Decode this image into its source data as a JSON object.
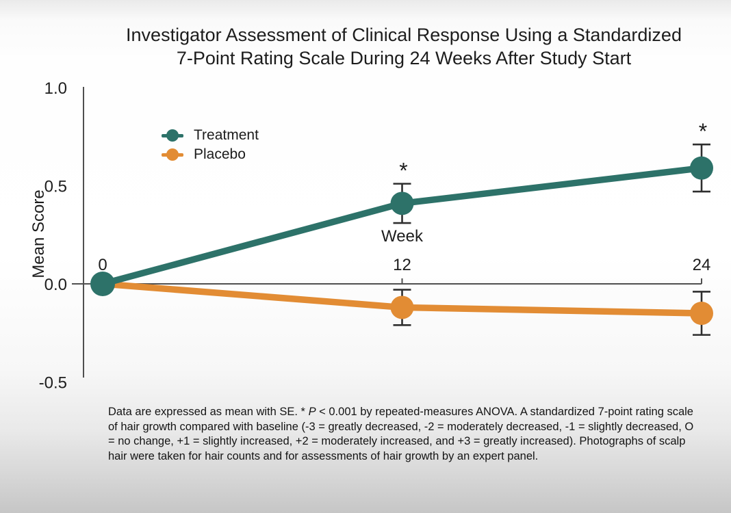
{
  "chart_data": {
    "type": "line",
    "title": "Investigator Assessment of Clinical Response Using a Standardized 7-Point Rating Scale During 24 Weeks After Study Start",
    "title_lines": [
      "Investigator Assessment of Clinical Response Using a Standardized",
      "7-Point Rating Scale During 24 Weeks After Study Start"
    ],
    "xlabel": "Week",
    "ylabel": "Mean Score",
    "x": [
      0,
      12,
      24
    ],
    "xtick_labels": [
      "0",
      "12",
      "24"
    ],
    "yticks": [
      1.0,
      0.5,
      0.0,
      -0.5
    ],
    "ytick_labels": [
      "1.0",
      "0.5",
      "0.0",
      "-0.5"
    ],
    "ylim": [
      -0.5,
      1.0
    ],
    "grid": false,
    "legend_position": "upper-left-inside",
    "sig_marker": "*",
    "axis_color": "#4f4f4f",
    "error_bar_color": "#2e2e2e",
    "text_color": "#1d1d1d",
    "series": [
      {
        "name": "Treatment",
        "color": "#2d7269",
        "values": [
          0.0,
          0.41,
          0.59
        ],
        "se": [
          0,
          0.1,
          0.12
        ],
        "significant": [
          false,
          true,
          true
        ]
      },
      {
        "name": "Placebo",
        "color": "#e28c34",
        "values": [
          0.0,
          -0.12,
          -0.15
        ],
        "se": [
          0,
          0.09,
          0.11
        ],
        "significant": [
          false,
          false,
          false
        ]
      }
    ]
  },
  "footnote": {
    "pre": "Data are expressed as mean with SE. * ",
    "p_symbol": "P",
    "post": " < 0.001 by repeated-measures ANOVA. A standardized 7-point rating scale of hair growth compared with baseline (-3 = greatly decreased, -2 = moderately decreased, -1 = slightly decreased, O = no change, +1 = slightly increased, +2 = moderately increased, and +3 = greatly increased). Photographs of scalp hair were taken for hair counts and for assessments of hair growth by an expert panel."
  }
}
